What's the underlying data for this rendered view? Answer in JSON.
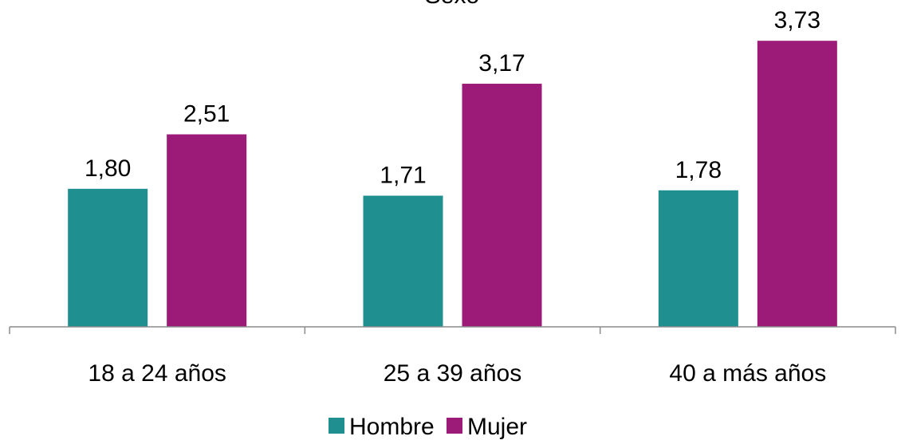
{
  "chart_data": {
    "type": "bar",
    "title": "Sexo",
    "categories": [
      "18 a 24 años",
      "25 a 39 años",
      "40 a más años"
    ],
    "series": [
      {
        "name": "Hombre",
        "color": "#1f8f8f",
        "values": [
          1.8,
          1.71,
          1.78
        ],
        "labels": [
          "1,80",
          "1,71",
          "1,78"
        ]
      },
      {
        "name": "Mujer",
        "color": "#9c1a78",
        "values": [
          2.51,
          3.17,
          3.73
        ],
        "labels": [
          "2,51",
          "3,17",
          "3,73"
        ]
      }
    ],
    "ylim": [
      0,
      4
    ],
    "grid": false,
    "legend": "bottom"
  }
}
